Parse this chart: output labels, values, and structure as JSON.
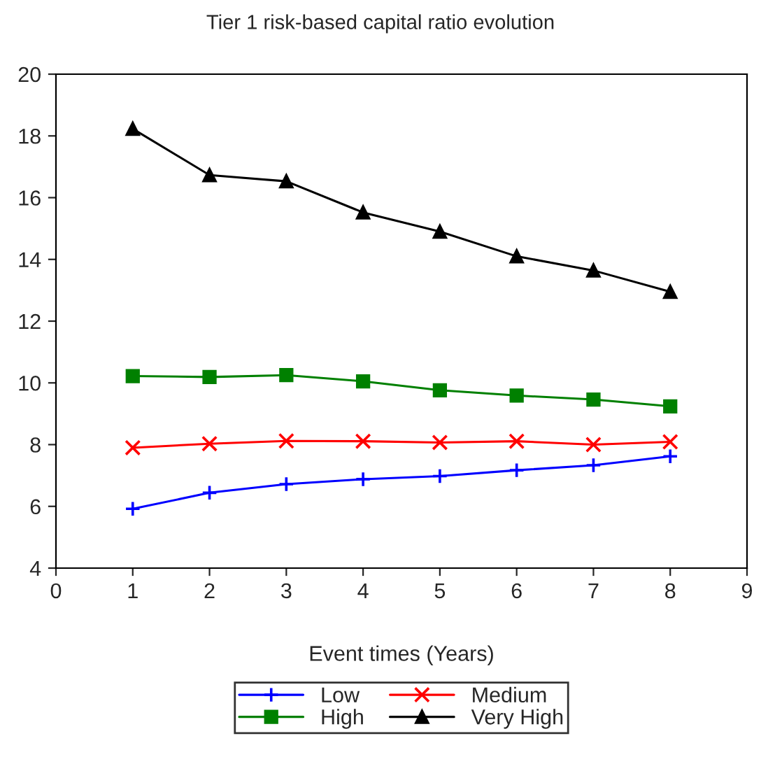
{
  "chart_data": {
    "type": "line",
    "title": "Tier 1 risk-based capital ratio evolution",
    "xlabel": "Event times (Years)",
    "x": [
      1,
      2,
      3,
      4,
      5,
      6,
      7,
      8
    ],
    "series": [
      {
        "name": "Low",
        "color": "#0000ff",
        "marker": "plus",
        "values": [
          5.92,
          6.44,
          6.72,
          6.88,
          6.98,
          7.17,
          7.33,
          7.62
        ]
      },
      {
        "name": "Medium",
        "color": "#ff0000",
        "marker": "cross",
        "values": [
          7.9,
          8.03,
          8.12,
          8.11,
          8.07,
          8.11,
          8.0,
          8.09
        ]
      },
      {
        "name": "High",
        "color": "#008000",
        "marker": "square",
        "values": [
          10.22,
          10.19,
          10.25,
          10.05,
          9.76,
          9.59,
          9.46,
          9.24
        ]
      },
      {
        "name": "Very High",
        "color": "#000000",
        "marker": "triangle",
        "values": [
          18.23,
          16.73,
          16.53,
          15.52,
          14.9,
          14.1,
          13.64,
          12.95
        ]
      }
    ],
    "xlim": [
      0,
      9
    ],
    "xticks": [
      0,
      1,
      2,
      3,
      4,
      5,
      6,
      7,
      8,
      9
    ],
    "ylim": [
      4,
      20
    ],
    "yticks": [
      4,
      6,
      8,
      10,
      12,
      14,
      16,
      18,
      20
    ],
    "grid": false,
    "legend": "bottom"
  }
}
